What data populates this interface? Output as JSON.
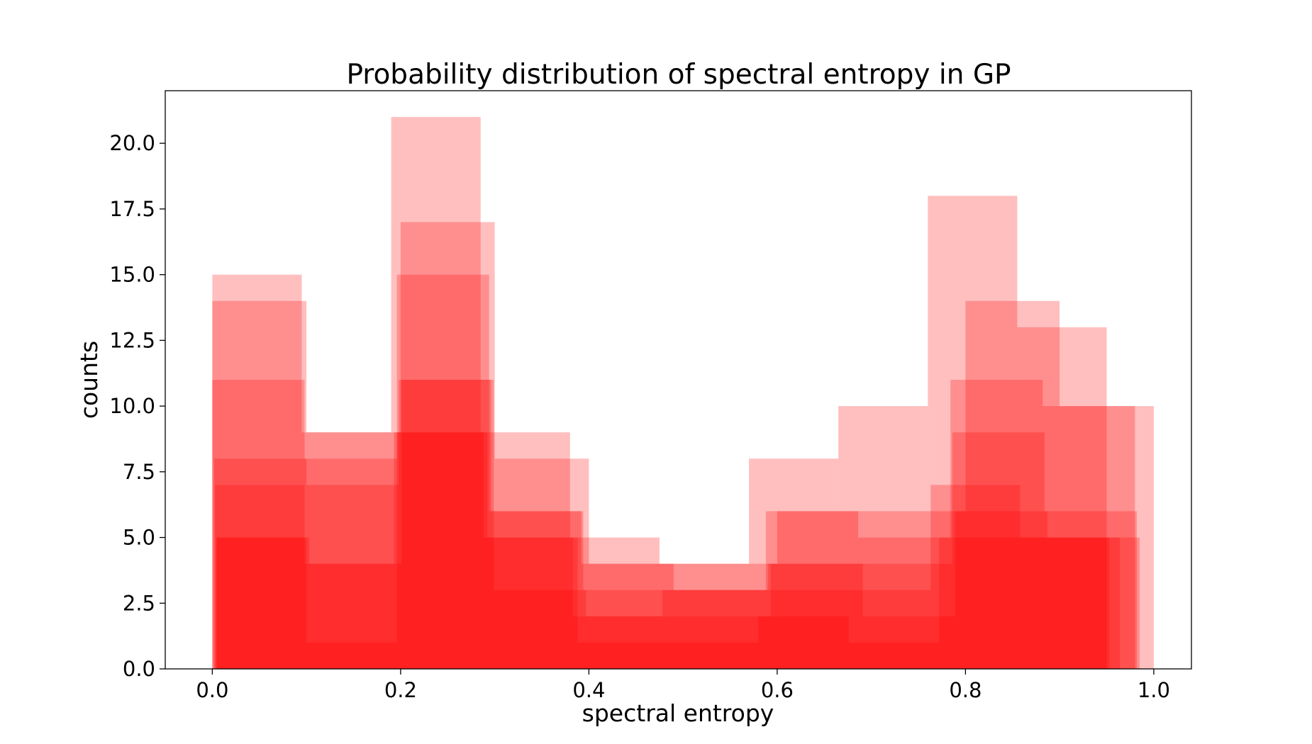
{
  "chart_data": {
    "type": "bar",
    "title": "Probability distribution of spectral entropy in GP",
    "xlabel": "spectral entropy",
    "ylabel": "counts",
    "xlim": [
      -0.05,
      1.04
    ],
    "ylim": [
      0,
      22
    ],
    "xticks": [
      "0.0",
      "0.2",
      "0.4",
      "0.6",
      "0.8",
      "1.0"
    ],
    "yticks": [
      "0.0",
      "2.5",
      "5.0",
      "7.5",
      "10.0",
      "12.5",
      "15.0",
      "17.5",
      "20.0"
    ],
    "bar_color": "#ff0000",
    "bar_opacity": 0.25,
    "series": [
      {
        "edges": [
          0.0,
          0.095,
          0.19,
          0.285,
          0.38,
          0.475,
          0.57,
          0.665,
          0.76,
          0.855,
          0.95
        ],
        "values": [
          15,
          9,
          21,
          9,
          5,
          4,
          8,
          10,
          18,
          13
        ]
      },
      {
        "edges": [
          0.0,
          0.1,
          0.2,
          0.3,
          0.4,
          0.5,
          0.6,
          0.7,
          0.8,
          0.9,
          1.0
        ],
        "values": [
          14,
          9,
          17,
          8,
          4,
          4,
          6,
          6,
          14,
          10
        ]
      },
      {
        "edges": [
          0.0,
          0.098,
          0.196,
          0.294,
          0.392,
          0.49,
          0.588,
          0.686,
          0.784,
          0.882,
          0.98
        ],
        "values": [
          11,
          8,
          15,
          6,
          4,
          3,
          6,
          5,
          11,
          10
        ]
      },
      {
        "edges": [
          0.002,
          0.1,
          0.198,
          0.296,
          0.394,
          0.492,
          0.59,
          0.688,
          0.786,
          0.884,
          0.982
        ],
        "values": [
          8,
          7,
          11,
          6,
          3,
          3,
          4,
          4,
          9,
          6
        ]
      },
      {
        "edges": [
          0.003,
          0.098,
          0.193,
          0.288,
          0.383,
          0.478,
          0.573,
          0.668,
          0.763,
          0.858,
          0.953
        ],
        "values": [
          7,
          4,
          9,
          5,
          2,
          3,
          3,
          3,
          7,
          5
        ]
      },
      {
        "edges": [
          0.004,
          0.1,
          0.196,
          0.292,
          0.388,
          0.484,
          0.58,
          0.676,
          0.772,
          0.868,
          0.964
        ],
        "values": [
          5,
          1,
          9,
          5,
          1,
          1,
          2,
          1,
          5,
          5
        ]
      },
      {
        "edges": [
          0.005,
          0.103,
          0.201,
          0.299,
          0.397,
          0.495,
          0.593,
          0.691,
          0.789,
          0.887,
          0.985
        ],
        "values": [
          5,
          4,
          11,
          3,
          2,
          2,
          4,
          2,
          6,
          5
        ]
      }
    ]
  }
}
